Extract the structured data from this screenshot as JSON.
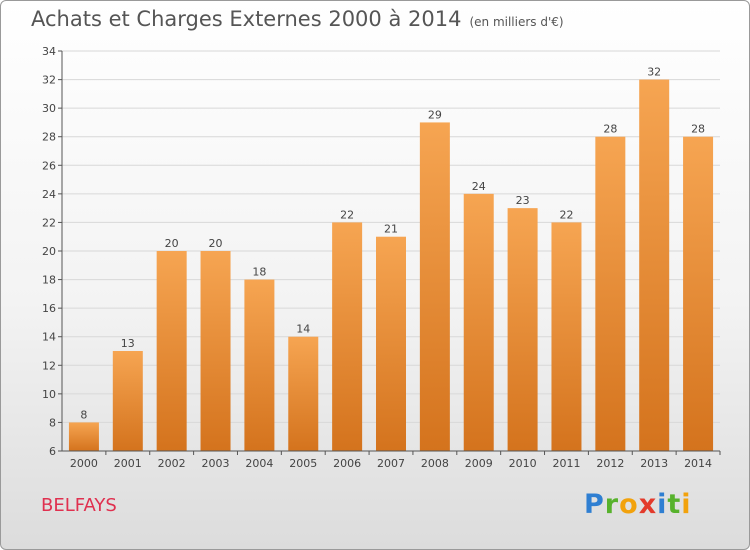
{
  "title": "Achats et Charges Externes 2000 à 2014",
  "subtitle": "(en milliers d'€)",
  "place": "BELFAYS",
  "logo": [
    "P",
    "r",
    "o",
    "x",
    "i",
    "t",
    "i"
  ],
  "colors": {
    "bar_top": "#f6a552",
    "bar_bottom": "#d4731d",
    "axis": "#555555",
    "grid": "#d8d8d8"
  },
  "chart_data": {
    "type": "bar",
    "title": "Achats et Charges Externes 2000 à 2014",
    "subtitle": "(en milliers d'€)",
    "categories": [
      "2000",
      "2001",
      "2002",
      "2003",
      "2004",
      "2005",
      "2006",
      "2007",
      "2008",
      "2009",
      "2010",
      "2011",
      "2012",
      "2013",
      "2014"
    ],
    "values": [
      8,
      13,
      20,
      20,
      18,
      14,
      22,
      21,
      29,
      24,
      23,
      22,
      28,
      32,
      28
    ],
    "ylim": [
      6,
      34
    ],
    "yticks": [
      6,
      8,
      10,
      12,
      14,
      16,
      18,
      20,
      22,
      24,
      26,
      28,
      30,
      32,
      34
    ],
    "grid": true,
    "data_labels": true
  }
}
